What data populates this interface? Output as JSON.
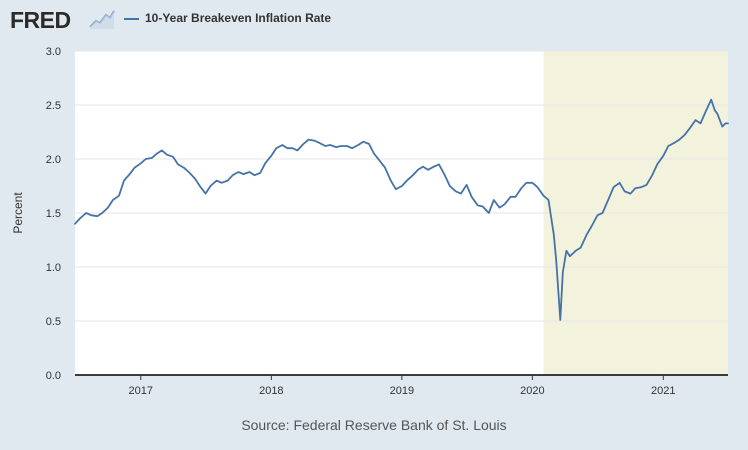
{
  "header": {
    "logo_text": "FRED",
    "logo_icon": "chart-line-icon",
    "legend_label": "10-Year Breakeven Inflation Rate"
  },
  "source_text": "Source: Federal Reserve Bank of St. Louis",
  "colors": {
    "line": "#4572a7",
    "recession_shade": "#f3f3dd",
    "background": "#e1e9f0",
    "plot_background": "#ffffff",
    "grid": "#e6e6e6"
  },
  "chart_data": {
    "type": "line",
    "ylabel": "Percent",
    "ylim": [
      0.0,
      3.0
    ],
    "xlim": [
      "2016-07-01",
      "2021-07-01"
    ],
    "y_ticks": [
      "0.0",
      "0.5",
      "1.0",
      "1.5",
      "2.0",
      "2.5",
      "3.0"
    ],
    "x_ticks": [
      "2017",
      "2018",
      "2019",
      "2020",
      "2021"
    ],
    "grid": true,
    "recession_shading": [
      {
        "start": "2020-02-01",
        "end": "2021-07-01"
      }
    ],
    "series": [
      {
        "name": "10-Year Breakeven Inflation Rate",
        "points": [
          [
            "2016-07-01",
            1.4
          ],
          [
            "2016-07-15",
            1.45
          ],
          [
            "2016-08-01",
            1.5
          ],
          [
            "2016-08-15",
            1.48
          ],
          [
            "2016-09-01",
            1.47
          ],
          [
            "2016-09-15",
            1.5
          ],
          [
            "2016-10-01",
            1.55
          ],
          [
            "2016-10-15",
            1.62
          ],
          [
            "2016-11-01",
            1.66
          ],
          [
            "2016-11-15",
            1.8
          ],
          [
            "2016-12-01",
            1.86
          ],
          [
            "2016-12-15",
            1.92
          ],
          [
            "2017-01-01",
            1.96
          ],
          [
            "2017-01-15",
            2.0
          ],
          [
            "2017-02-01",
            2.01
          ],
          [
            "2017-02-15",
            2.05
          ],
          [
            "2017-03-01",
            2.08
          ],
          [
            "2017-03-15",
            2.04
          ],
          [
            "2017-04-01",
            2.02
          ],
          [
            "2017-04-15",
            1.95
          ],
          [
            "2017-05-01",
            1.92
          ],
          [
            "2017-05-15",
            1.88
          ],
          [
            "2017-06-01",
            1.82
          ],
          [
            "2017-06-15",
            1.75
          ],
          [
            "2017-07-01",
            1.68
          ],
          [
            "2017-07-15",
            1.75
          ],
          [
            "2017-08-01",
            1.8
          ],
          [
            "2017-08-15",
            1.78
          ],
          [
            "2017-09-01",
            1.8
          ],
          [
            "2017-09-15",
            1.85
          ],
          [
            "2017-10-01",
            1.88
          ],
          [
            "2017-10-15",
            1.86
          ],
          [
            "2017-11-01",
            1.88
          ],
          [
            "2017-11-15",
            1.85
          ],
          [
            "2017-12-01",
            1.87
          ],
          [
            "2017-12-15",
            1.96
          ],
          [
            "2018-01-01",
            2.03
          ],
          [
            "2018-01-15",
            2.1
          ],
          [
            "2018-02-01",
            2.13
          ],
          [
            "2018-02-15",
            2.1
          ],
          [
            "2018-03-01",
            2.1
          ],
          [
            "2018-03-15",
            2.08
          ],
          [
            "2018-04-01",
            2.14
          ],
          [
            "2018-04-15",
            2.18
          ],
          [
            "2018-05-01",
            2.17
          ],
          [
            "2018-05-15",
            2.15
          ],
          [
            "2018-06-01",
            2.12
          ],
          [
            "2018-06-15",
            2.13
          ],
          [
            "2018-07-01",
            2.11
          ],
          [
            "2018-07-15",
            2.12
          ],
          [
            "2018-08-01",
            2.12
          ],
          [
            "2018-08-15",
            2.1
          ],
          [
            "2018-09-01",
            2.13
          ],
          [
            "2018-09-15",
            2.16
          ],
          [
            "2018-10-01",
            2.14
          ],
          [
            "2018-10-15",
            2.05
          ],
          [
            "2018-11-01",
            1.98
          ],
          [
            "2018-11-15",
            1.92
          ],
          [
            "2018-12-01",
            1.8
          ],
          [
            "2018-12-15",
            1.72
          ],
          [
            "2019-01-01",
            1.75
          ],
          [
            "2019-01-15",
            1.8
          ],
          [
            "2019-02-01",
            1.85
          ],
          [
            "2019-02-15",
            1.9
          ],
          [
            "2019-03-01",
            1.93
          ],
          [
            "2019-03-15",
            1.9
          ],
          [
            "2019-04-01",
            1.93
          ],
          [
            "2019-04-15",
            1.95
          ],
          [
            "2019-05-01",
            1.85
          ],
          [
            "2019-05-15",
            1.75
          ],
          [
            "2019-06-01",
            1.7
          ],
          [
            "2019-06-15",
            1.68
          ],
          [
            "2019-07-01",
            1.76
          ],
          [
            "2019-07-15",
            1.65
          ],
          [
            "2019-08-01",
            1.57
          ],
          [
            "2019-08-15",
            1.56
          ],
          [
            "2019-09-01",
            1.5
          ],
          [
            "2019-09-15",
            1.62
          ],
          [
            "2019-10-01",
            1.55
          ],
          [
            "2019-10-15",
            1.58
          ],
          [
            "2019-11-01",
            1.65
          ],
          [
            "2019-11-15",
            1.65
          ],
          [
            "2019-12-01",
            1.73
          ],
          [
            "2019-12-15",
            1.78
          ],
          [
            "2020-01-01",
            1.78
          ],
          [
            "2020-01-15",
            1.74
          ],
          [
            "2020-02-01",
            1.66
          ],
          [
            "2020-02-15",
            1.62
          ],
          [
            "2020-03-01",
            1.3
          ],
          [
            "2020-03-08",
            1.05
          ],
          [
            "2020-03-19",
            0.51
          ],
          [
            "2020-03-26",
            0.95
          ],
          [
            "2020-04-05",
            1.15
          ],
          [
            "2020-04-15",
            1.1
          ],
          [
            "2020-05-01",
            1.15
          ],
          [
            "2020-05-15",
            1.18
          ],
          [
            "2020-06-01",
            1.3
          ],
          [
            "2020-06-15",
            1.38
          ],
          [
            "2020-07-01",
            1.48
          ],
          [
            "2020-07-15",
            1.5
          ],
          [
            "2020-08-01",
            1.63
          ],
          [
            "2020-08-15",
            1.74
          ],
          [
            "2020-09-01",
            1.78
          ],
          [
            "2020-09-15",
            1.7
          ],
          [
            "2020-10-01",
            1.68
          ],
          [
            "2020-10-15",
            1.73
          ],
          [
            "2020-11-01",
            1.74
          ],
          [
            "2020-11-15",
            1.76
          ],
          [
            "2020-12-01",
            1.85
          ],
          [
            "2020-12-15",
            1.95
          ],
          [
            "2021-01-01",
            2.03
          ],
          [
            "2021-01-15",
            2.12
          ],
          [
            "2021-02-01",
            2.15
          ],
          [
            "2021-02-15",
            2.18
          ],
          [
            "2021-03-01",
            2.22
          ],
          [
            "2021-03-15",
            2.28
          ],
          [
            "2021-04-01",
            2.36
          ],
          [
            "2021-04-15",
            2.33
          ],
          [
            "2021-05-01",
            2.45
          ],
          [
            "2021-05-15",
            2.55
          ],
          [
            "2021-05-25",
            2.45
          ],
          [
            "2021-06-01",
            2.42
          ],
          [
            "2021-06-15",
            2.3
          ],
          [
            "2021-06-24",
            2.33
          ],
          [
            "2021-07-01",
            2.33
          ]
        ]
      }
    ]
  }
}
